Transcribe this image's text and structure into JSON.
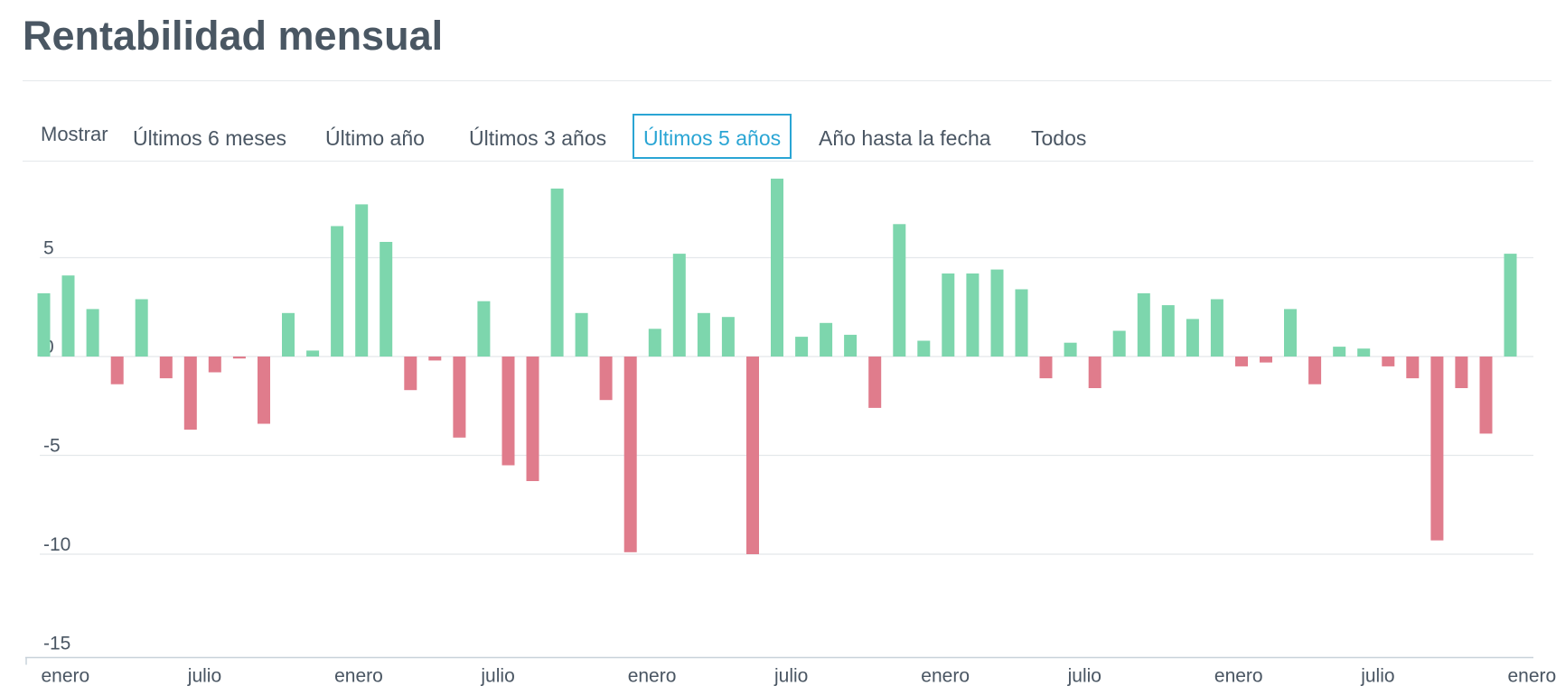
{
  "header": {
    "title": "Rentabilidad mensual"
  },
  "range_selector": {
    "label": "Mostrar",
    "options": [
      "Últimos 6 meses",
      "Último año",
      "Últimos 3 años",
      "Últimos 5 años",
      "Año hasta la fecha",
      "Todos"
    ],
    "selected": "Últimos 5 años"
  },
  "colors": {
    "positive": "#7dd6ad",
    "negative": "#e07c8c",
    "grid": "#e4e8eb",
    "axis": "#c8d2da",
    "active": "#2aa5d4"
  },
  "chart_data": {
    "type": "bar",
    "title": "",
    "xlabel": "",
    "ylabel": "",
    "ylim": [
      -15,
      10
    ],
    "y_ticks": [
      5,
      0,
      -5,
      -10,
      -15
    ],
    "x_tick_labels": [
      "enero",
      "julio",
      "enero",
      "julio",
      "enero",
      "julio",
      "enero",
      "julio",
      "enero",
      "julio",
      "enero"
    ],
    "x_tick_month_index": [
      0,
      6,
      12,
      18,
      24,
      30,
      36,
      42,
      48,
      54,
      60
    ],
    "values": [
      3.2,
      4.1,
      2.4,
      -1.4,
      2.9,
      -1.1,
      -3.7,
      -0.8,
      -0.1,
      -3.4,
      2.2,
      0.3,
      6.6,
      7.7,
      5.8,
      -1.7,
      -0.2,
      -4.1,
      2.8,
      -5.5,
      -6.3,
      8.5,
      2.2,
      -2.2,
      -9.9,
      1.4,
      5.2,
      2.2,
      2.0,
      -10.0,
      9.0,
      1.0,
      1.7,
      1.1,
      -2.6,
      6.7,
      0.8,
      4.2,
      4.2,
      4.4,
      3.4,
      -1.1,
      0.7,
      -1.6,
      1.3,
      3.2,
      2.6,
      1.9,
      2.9,
      -0.5,
      -0.3,
      2.4,
      -1.4,
      0.5,
      0.4,
      -0.5,
      -1.1,
      -9.3,
      -1.6,
      -3.9,
      5.2
    ],
    "grid": true,
    "legend": "none"
  }
}
